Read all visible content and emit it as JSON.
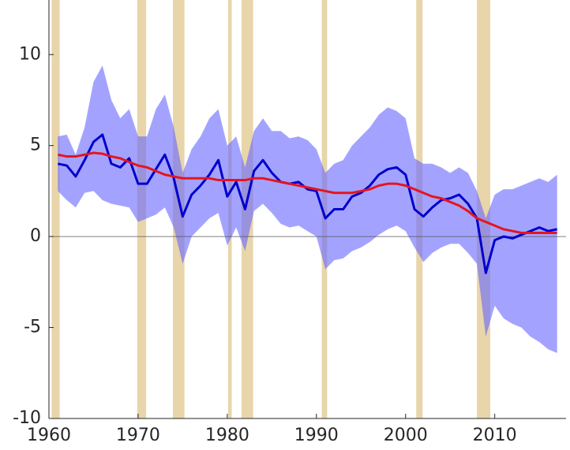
{
  "chart_data": {
    "type": "line",
    "x": [
      1961,
      1962,
      1963,
      1964,
      1965,
      1966,
      1967,
      1968,
      1969,
      1970,
      1971,
      1972,
      1973,
      1974,
      1975,
      1976,
      1977,
      1978,
      1979,
      1980,
      1981,
      1982,
      1983,
      1984,
      1985,
      1986,
      1987,
      1988,
      1989,
      1990,
      1991,
      1992,
      1993,
      1994,
      1995,
      1996,
      1997,
      1998,
      1999,
      2000,
      2001,
      2002,
      2003,
      2004,
      2005,
      2006,
      2007,
      2008,
      2009,
      2010,
      2011,
      2012,
      2013,
      2014,
      2015,
      2016,
      2017
    ],
    "series": [
      {
        "color": "#0000cc",
        "values": [
          4.0,
          3.9,
          3.3,
          4.2,
          5.2,
          5.6,
          4.0,
          3.8,
          4.3,
          2.9,
          2.9,
          3.7,
          4.5,
          3.2,
          1.1,
          2.3,
          2.8,
          3.4,
          4.2,
          2.2,
          3.0,
          1.5,
          3.6,
          4.2,
          3.5,
          3.0,
          2.9,
          3.0,
          2.6,
          2.5,
          1.0,
          1.5,
          1.5,
          2.2,
          2.4,
          2.8,
          3.4,
          3.7,
          3.8,
          3.4,
          1.5,
          1.1,
          1.6,
          2.0,
          2.1,
          2.3,
          1.8,
          1.0,
          -2.0,
          -0.2,
          0.0,
          -0.1,
          0.1,
          0.3,
          0.5,
          0.3,
          0.4
        ]
      },
      {
        "color": "#e6141e",
        "values": [
          4.5,
          4.4,
          4.4,
          4.5,
          4.6,
          4.55,
          4.4,
          4.3,
          4.1,
          3.9,
          3.8,
          3.6,
          3.4,
          3.3,
          3.2,
          3.2,
          3.2,
          3.2,
          3.1,
          3.1,
          3.1,
          3.1,
          3.2,
          3.2,
          3.1,
          3.0,
          2.9,
          2.8,
          2.7,
          2.6,
          2.5,
          2.4,
          2.4,
          2.4,
          2.5,
          2.6,
          2.8,
          2.9,
          2.9,
          2.8,
          2.6,
          2.4,
          2.2,
          2.1,
          1.9,
          1.7,
          1.4,
          1.0,
          0.8,
          0.6,
          0.4,
          0.3,
          0.2,
          0.2,
          0.2,
          0.2,
          0.2
        ]
      }
    ],
    "band": {
      "color": "#6666ff",
      "upper": [
        5.5,
        5.6,
        4.5,
        6.0,
        8.5,
        9.4,
        7.5,
        6.5,
        7.0,
        5.5,
        5.5,
        7.0,
        7.8,
        6.0,
        3.5,
        4.8,
        5.5,
        6.5,
        7.0,
        5.0,
        5.5,
        3.8,
        5.8,
        6.5,
        5.8,
        5.8,
        5.4,
        5.5,
        5.3,
        4.8,
        3.5,
        4.0,
        4.2,
        5.0,
        5.5,
        6.0,
        6.7,
        7.1,
        6.9,
        6.5,
        4.3,
        4.0,
        4.0,
        3.8,
        3.5,
        3.8,
        3.5,
        2.5,
        1.0,
        2.3,
        2.6,
        2.6,
        2.8,
        3.0,
        3.2,
        3.0,
        3.4
      ],
      "lower": [
        2.5,
        2.0,
        1.6,
        2.4,
        2.5,
        2.0,
        1.8,
        1.7,
        1.6,
        0.8,
        1.0,
        1.2,
        1.6,
        0.5,
        -1.5,
        0.0,
        0.5,
        1.0,
        1.3,
        -0.5,
        0.5,
        -0.8,
        1.4,
        1.8,
        1.3,
        0.7,
        0.5,
        0.6,
        0.3,
        0.0,
        -1.8,
        -1.3,
        -1.2,
        -0.8,
        -0.6,
        -0.3,
        0.1,
        0.4,
        0.6,
        0.3,
        -0.6,
        -1.4,
        -0.9,
        -0.6,
        -0.4,
        -0.4,
        -0.9,
        -1.5,
        -5.5,
        -3.8,
        -4.5,
        -4.8,
        -5.0,
        -5.5,
        -5.8,
        -6.2,
        -6.4
      ]
    },
    "shaded_periods": [
      [
        1960.3,
        1961.2
      ],
      [
        1969.9,
        1970.9
      ],
      [
        1973.9,
        1975.2
      ],
      [
        1980.1,
        1980.5
      ],
      [
        1981.6,
        1982.9
      ],
      [
        1990.6,
        1991.2
      ],
      [
        2001.2,
        2001.9
      ],
      [
        2008.0,
        2009.5
      ]
    ],
    "shaded_color": "#e8d5a9",
    "reference_line": 0,
    "xlim": [
      1960,
      2018
    ],
    "xticks": [
      1960,
      1970,
      1980,
      1990,
      2000,
      2010
    ],
    "ylim": [
      -10,
      13
    ],
    "yticks": [
      -10,
      -5,
      0,
      5,
      10
    ]
  }
}
